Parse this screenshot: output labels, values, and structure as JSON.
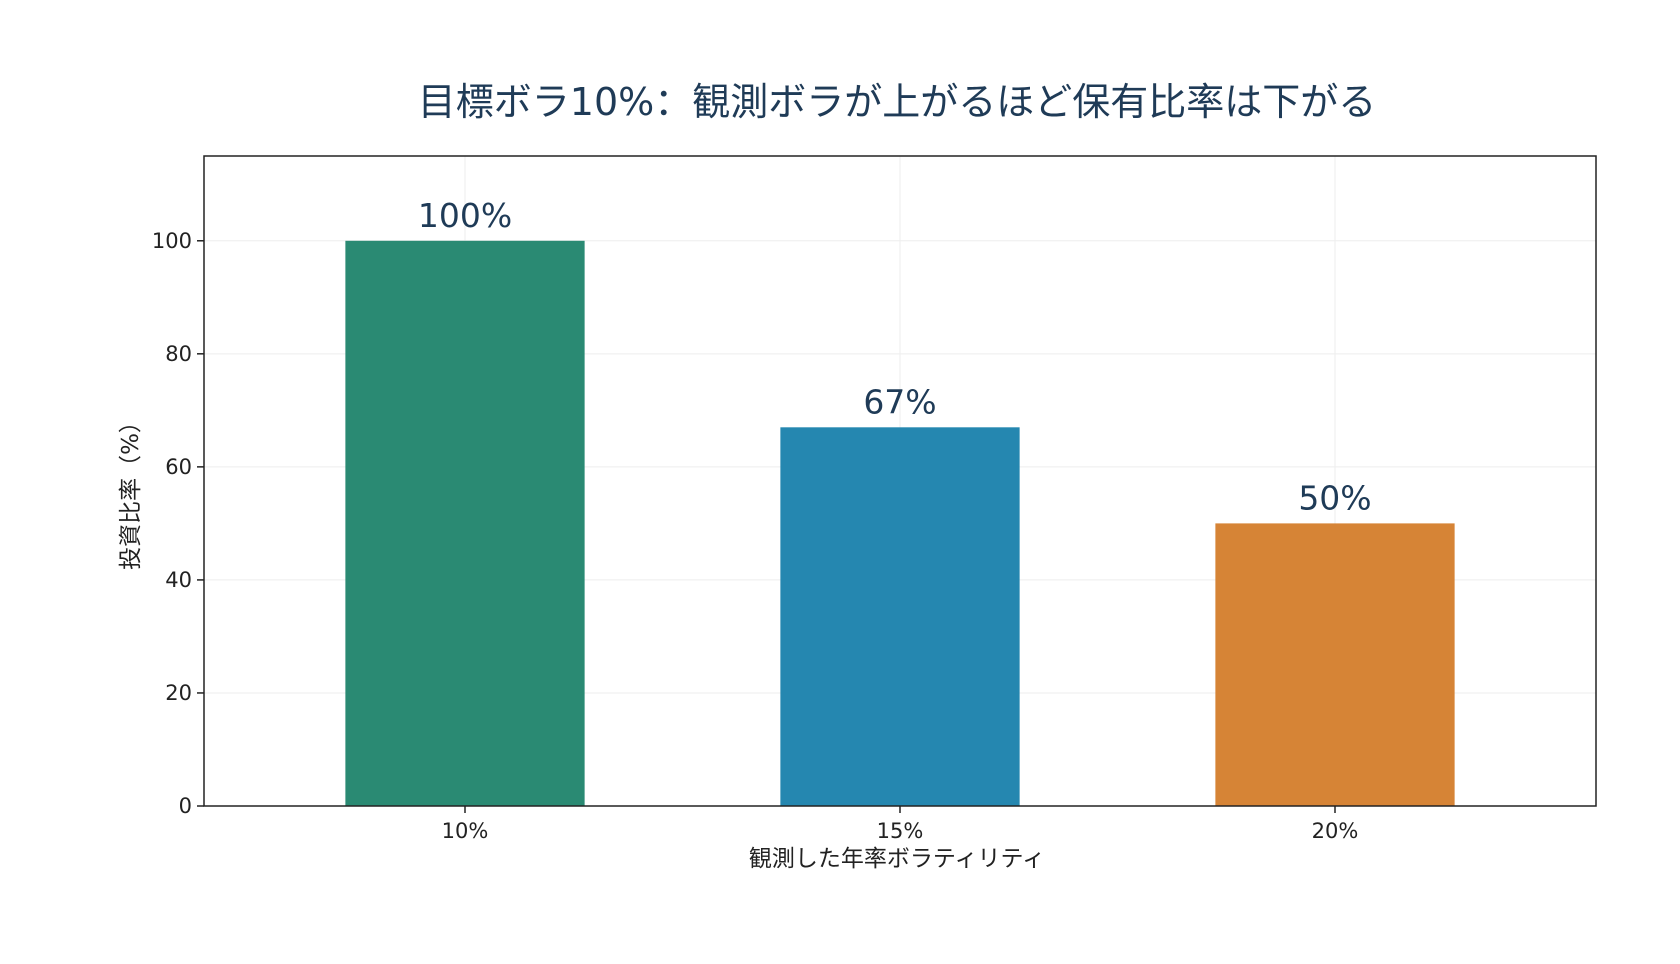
{
  "chart_data": {
    "type": "bar",
    "title": "目標ボラ10%：観測ボラが上がるほど保有比率は下がる",
    "xlabel": "観測した年率ボラティリティ",
    "ylabel": "投資比率（%）",
    "categories": [
      "10%",
      "15%",
      "20%"
    ],
    "values": [
      100,
      67,
      50
    ],
    "value_labels": [
      "100%",
      "67%",
      "50%"
    ],
    "bar_colors": [
      "#2a8a73",
      "#2587b0",
      "#d68436"
    ],
    "ylim": [
      0,
      115
    ],
    "yticks": [
      0,
      20,
      40,
      60,
      80,
      100
    ],
    "grid": true,
    "legend": "none"
  },
  "colors": {
    "title": "#1f3b57",
    "value_label": "#1f3b57",
    "grid": "#eeeeee",
    "frame": "#222222"
  }
}
